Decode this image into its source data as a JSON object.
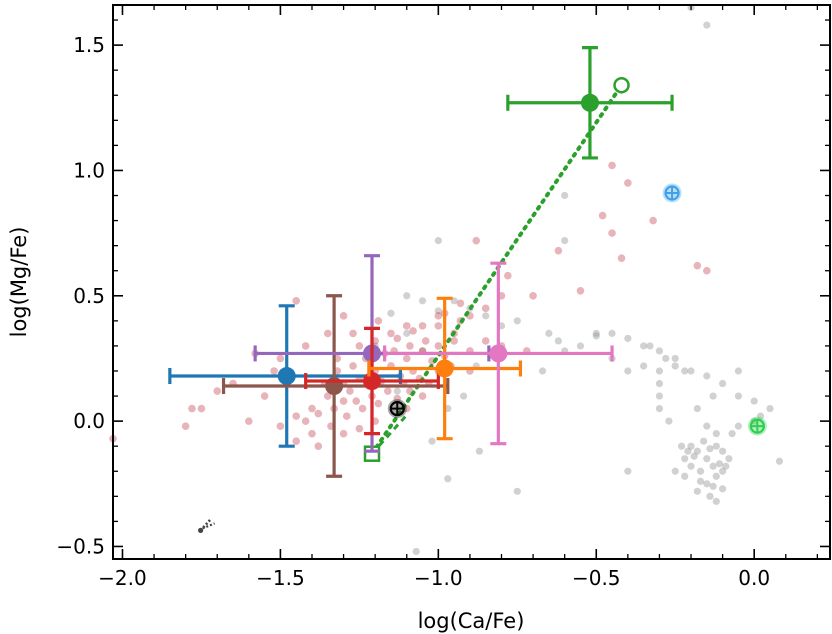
{
  "chart_data": {
    "type": "scatter",
    "title": "",
    "xlabel": "log(Ca/Fe)",
    "ylabel": "log(Mg/Fe)",
    "xlim": [
      -2.03,
      0.24
    ],
    "ylim": [
      -0.55,
      1.66
    ],
    "xticks": [
      -2.0,
      -1.5,
      -1.0,
      -0.5,
      0.0
    ],
    "xtick_labels": [
      "−2.0",
      "−1.5",
      "−1.0",
      "−0.5",
      "0.0"
    ],
    "yticks": [
      -0.5,
      0.0,
      0.5,
      1.0,
      1.5
    ],
    "ytick_labels": [
      "−0.5",
      "0.0",
      "0.5",
      "1.0",
      "1.5"
    ],
    "legend": "none",
    "background_gray_points": {
      "color": "#999999",
      "points": [
        [
          -0.42,
          1.32
        ],
        [
          -0.6,
          0.9
        ],
        [
          -0.6,
          0.72
        ],
        [
          -0.95,
          0.48
        ],
        [
          -1.05,
          0.48
        ],
        [
          -1.1,
          0.5
        ],
        [
          -1.0,
          0.44
        ],
        [
          -0.85,
          0.42
        ],
        [
          -0.9,
          0.45
        ],
        [
          -0.75,
          0.4
        ],
        [
          -0.8,
          0.38
        ],
        [
          -0.65,
          0.35
        ],
        [
          -0.5,
          0.34
        ],
        [
          -0.45,
          0.35
        ],
        [
          -0.4,
          0.33
        ],
        [
          -0.35,
          0.3
        ],
        [
          -0.3,
          0.28
        ],
        [
          -0.25,
          0.25
        ],
        [
          -0.2,
          0.2
        ],
        [
          -0.15,
          0.18
        ],
        [
          -0.1,
          0.15
        ],
        [
          -0.05,
          0.1
        ],
        [
          0.0,
          0.08
        ],
        [
          0.05,
          0.05
        ],
        [
          -0.3,
          0.2
        ],
        [
          -0.35,
          0.22
        ],
        [
          -0.28,
          0.25
        ],
        [
          -0.22,
          0.2
        ],
        [
          -0.18,
          0.05
        ],
        [
          -0.15,
          -0.02
        ],
        [
          -0.12,
          -0.05
        ],
        [
          -0.2,
          -0.1
        ],
        [
          -0.18,
          -0.12
        ],
        [
          -0.15,
          -0.15
        ],
        [
          -0.12,
          -0.1
        ],
        [
          -0.1,
          -0.2
        ],
        [
          -0.15,
          -0.25
        ],
        [
          -0.2,
          -0.18
        ],
        [
          -0.22,
          -0.15
        ],
        [
          -0.17,
          -0.2
        ],
        [
          -0.13,
          -0.18
        ],
        [
          -0.1,
          -0.12
        ],
        [
          -0.08,
          -0.15
        ],
        [
          -0.18,
          -0.28
        ],
        [
          -0.14,
          -0.3
        ],
        [
          -0.12,
          -0.22
        ],
        [
          -0.22,
          -0.22
        ],
        [
          -0.25,
          -0.2
        ],
        [
          -0.16,
          -0.08
        ],
        [
          -0.19,
          -0.14
        ],
        [
          -0.14,
          -0.11
        ],
        [
          -0.11,
          -0.17
        ],
        [
          -0.21,
          -0.12
        ],
        [
          -0.23,
          -0.1
        ],
        [
          -0.09,
          -0.18
        ],
        [
          -0.13,
          -0.26
        ],
        [
          -0.17,
          -0.24
        ],
        [
          -0.1,
          -0.27
        ],
        [
          -0.12,
          -0.32
        ],
        [
          -0.07,
          -0.05
        ],
        [
          -0.05,
          -0.02
        ],
        [
          0.0,
          0.0
        ],
        [
          0.02,
          0.02
        ],
        [
          0.08,
          -0.16
        ],
        [
          -0.3,
          0.15
        ],
        [
          -0.27,
          0.0
        ],
        [
          -0.4,
          0.2
        ],
        [
          -0.45,
          0.25
        ],
        [
          -0.55,
          0.3
        ],
        [
          -1.02,
          -0.08
        ],
        [
          -0.87,
          -0.12
        ],
        [
          -0.75,
          -0.28
        ],
        [
          -0.4,
          -0.2
        ],
        [
          -0.2,
          1.65
        ],
        [
          -0.15,
          1.58
        ],
        [
          -1.0,
          0.72
        ],
        [
          -1.1,
          0.35
        ],
        [
          -1.2,
          0.3
        ],
        [
          -0.97,
          0.05
        ],
        [
          -0.92,
          0.1
        ],
        [
          -0.88,
          0.22
        ],
        [
          -1.05,
          0.28
        ],
        [
          -0.33,
          0.3
        ],
        [
          -0.6,
          0.28
        ],
        [
          -0.62,
          0.32
        ],
        [
          -0.67,
          0.2
        ],
        [
          -1.15,
          0.43
        ],
        [
          -1.13,
          0.12
        ],
        [
          -0.25,
          0.22
        ],
        [
          -0.5,
          0.35
        ],
        [
          -0.05,
          0.2
        ],
        [
          -0.13,
          0.1
        ],
        [
          -0.3,
          0.1
        ],
        [
          -1.07,
          -0.52
        ],
        [
          -0.97,
          -0.23
        ],
        [
          -0.3,
          0.05
        ]
      ]
    },
    "sample_red_points": {
      "color": "#c0394a",
      "points": [
        [
          -1.3,
          0.15
        ],
        [
          -1.25,
          0.17
        ],
        [
          -1.2,
          0.2
        ],
        [
          -1.15,
          0.22
        ],
        [
          -1.1,
          0.25
        ],
        [
          -1.05,
          0.28
        ],
        [
          -1.0,
          0.3
        ],
        [
          -0.95,
          0.32
        ],
        [
          -1.35,
          0.1
        ],
        [
          -1.4,
          0.05
        ],
        [
          -1.45,
          0.02
        ],
        [
          -1.5,
          -0.02
        ],
        [
          -1.3,
          0.08
        ],
        [
          -1.28,
          0.12
        ],
        [
          -1.22,
          0.14
        ],
        [
          -1.18,
          0.16
        ],
        [
          -1.12,
          0.18
        ],
        [
          -1.08,
          0.2
        ],
        [
          -1.02,
          0.24
        ],
        [
          -0.98,
          0.26
        ],
        [
          -1.32,
          0.2
        ],
        [
          -1.27,
          0.22
        ],
        [
          -1.23,
          0.25
        ],
        [
          -1.17,
          0.27
        ],
        [
          -1.14,
          0.28
        ],
        [
          -1.09,
          0.3
        ],
        [
          -1.04,
          0.32
        ],
        [
          -1.36,
          0.15
        ],
        [
          -1.33,
          0.05
        ],
        [
          -1.26,
          0.08
        ],
        [
          -1.21,
          0.1
        ],
        [
          -1.16,
          0.12
        ],
        [
          -1.11,
          0.15
        ],
        [
          -1.06,
          0.17
        ],
        [
          -1.0,
          0.2
        ],
        [
          -0.96,
          0.22
        ],
        [
          -1.42,
          0.0
        ],
        [
          -1.38,
          0.03
        ],
        [
          -1.34,
          -0.02
        ],
        [
          -1.29,
          0.02
        ],
        [
          -1.24,
          0.05
        ],
        [
          -1.19,
          0.07
        ],
        [
          -1.13,
          0.09
        ],
        [
          -1.09,
          0.12
        ],
        [
          -1.03,
          0.15
        ],
        [
          -1.25,
          0.3
        ],
        [
          -1.15,
          0.35
        ],
        [
          -1.05,
          0.38
        ],
        [
          -1.0,
          0.38
        ],
        [
          -0.95,
          0.35
        ],
        [
          -0.9,
          0.28
        ],
        [
          -1.4,
          -0.05
        ],
        [
          -1.45,
          -0.08
        ],
        [
          -1.38,
          -0.1
        ],
        [
          -1.3,
          -0.05
        ],
        [
          -1.2,
          0.0
        ],
        [
          -1.1,
          0.05
        ],
        [
          -1.25,
          -0.03
        ],
        [
          -1.32,
          0.25
        ],
        [
          -1.2,
          0.32
        ],
        [
          -1.1,
          0.38
        ],
        [
          -1.0,
          0.42
        ],
        [
          -0.93,
          0.4
        ],
        [
          -0.85,
          0.45
        ],
        [
          -0.8,
          0.5
        ],
        [
          -0.7,
          0.5
        ],
        [
          -0.85,
          0.32
        ],
        [
          -0.9,
          0.2
        ],
        [
          -1.05,
          0.1
        ],
        [
          -1.55,
          0.1
        ],
        [
          -1.6,
          0.0
        ],
        [
          -1.7,
          0.12
        ],
        [
          -1.75,
          0.05
        ],
        [
          -1.65,
          0.15
        ],
        [
          -1.48,
          0.15
        ],
        [
          -1.52,
          0.2
        ],
        [
          -1.58,
          0.27
        ],
        [
          -1.78,
          0.05
        ],
        [
          -1.8,
          -0.02
        ],
        [
          -2.03,
          -0.07
        ],
        [
          -1.45,
          0.48
        ],
        [
          -0.88,
          0.72
        ],
        [
          -0.62,
          0.68
        ],
        [
          -0.78,
          0.58
        ],
        [
          -0.55,
          0.52
        ],
        [
          -0.48,
          0.82
        ],
        [
          -0.45,
          0.75
        ],
        [
          -0.42,
          0.65
        ],
        [
          -0.45,
          1.02
        ],
        [
          -0.4,
          0.95
        ],
        [
          -0.32,
          0.8
        ],
        [
          -0.18,
          0.62
        ],
        [
          -0.15,
          0.6
        ],
        [
          -0.8,
          0.3
        ],
        [
          -0.72,
          0.28
        ],
        [
          -0.9,
          0.42
        ],
        [
          -1.13,
          0.33
        ],
        [
          -1.08,
          0.36
        ],
        [
          -1.27,
          0.35
        ],
        [
          -0.98,
          0.43
        ],
        [
          -0.93,
          0.47
        ],
        [
          -1.19,
          0.4
        ],
        [
          -1.5,
          0.25
        ],
        [
          -1.42,
          0.3
        ],
        [
          -1.35,
          0.35
        ],
        [
          -1.3,
          0.42
        ]
      ]
    },
    "highlighted_points": [
      {
        "name": "blue",
        "color": "#1f77b4",
        "x": -1.48,
        "y": 0.18,
        "xerr": [
          0.37,
          0.36
        ],
        "yerr": [
          0.28,
          0.28
        ]
      },
      {
        "name": "brown",
        "color": "#8c564b",
        "x": -1.33,
        "y": 0.14,
        "xerr": [
          0.35,
          0.36
        ],
        "yerr": [
          0.36,
          0.36
        ]
      },
      {
        "name": "purple",
        "color": "#9467bd",
        "x": -1.21,
        "y": 0.27,
        "xerr": [
          0.37,
          0.37
        ],
        "yerr": [
          0.39,
          0.39
        ]
      },
      {
        "name": "red",
        "color": "#d62728",
        "x": -1.21,
        "y": 0.16,
        "xerr": [
          0.21,
          0.21
        ],
        "yerr": [
          0.21,
          0.21
        ]
      },
      {
        "name": "orange",
        "color": "#ff7f0e",
        "x": -0.98,
        "y": 0.21,
        "xerr": [
          0.24,
          0.24
        ],
        "yerr": [
          0.28,
          0.28
        ]
      },
      {
        "name": "pink",
        "color": "#e377c2",
        "x": -0.81,
        "y": 0.27,
        "xerr": [
          0.36,
          0.36
        ],
        "yerr": [
          0.36,
          0.36
        ]
      },
      {
        "name": "green",
        "color": "#2ca02c",
        "x": -0.52,
        "y": 1.27,
        "xerr": [
          0.26,
          0.26
        ],
        "yerr": [
          0.22,
          0.22
        ]
      }
    ],
    "green_open_circle": {
      "color": "#2ca02c",
      "x": -0.42,
      "y": 1.34
    },
    "green_open_square": {
      "color": "#2ca02c",
      "x": -1.21,
      "y": -0.13
    },
    "green_dotted_line": [
      [
        -1.21,
        -0.13
      ],
      [
        -0.42,
        1.34
      ]
    ],
    "solar_symbols": [
      {
        "name": "sun-dark",
        "color": "#000000",
        "x": -1.13,
        "y": 0.05
      },
      {
        "name": "sun-blue",
        "color": "#3ea2ea",
        "x": -0.26,
        "y": 0.91
      },
      {
        "name": "sun-green",
        "color": "#2bd04c",
        "x": 0.01,
        "y": -0.02
      }
    ],
    "lower_left_marker": {
      "name": "sparse-marker",
      "color": "#444444",
      "x": -1.74,
      "y": -0.42
    }
  }
}
